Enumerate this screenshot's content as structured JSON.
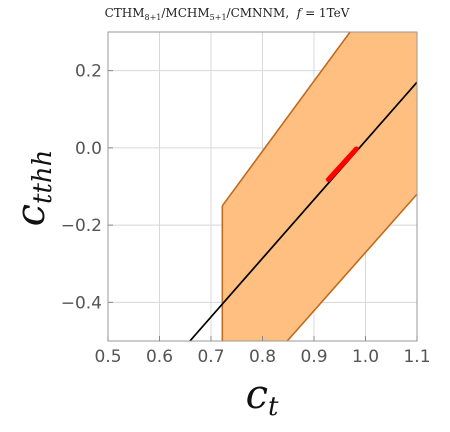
{
  "chart_data": {
    "type": "area",
    "title": {
      "prefix": "CTHM",
      "sub1": "8+1",
      "mid": "/MCHM",
      "sub2": "5+1",
      "suffix": "/CMNNM,  ",
      "param_italic": "f",
      "param_rest": " = 1TeV"
    },
    "xlabel": {
      "main": "c",
      "sub": "t"
    },
    "ylabel": {
      "main": "c",
      "sub": "tthh"
    },
    "xlim": [
      0.5,
      1.1
    ],
    "ylim": [
      -0.5,
      0.3
    ],
    "xticks": [
      0.5,
      0.6,
      0.7,
      0.8,
      0.9,
      1.0,
      1.1
    ],
    "xtick_labels": [
      "0.5",
      "0.6",
      "0.7",
      "0.8",
      "0.9",
      "1.0",
      "1.1"
    ],
    "yticks": [
      0.2,
      0.0,
      -0.2,
      -0.4
    ],
    "ytick_labels": [
      "0.2",
      "0.0",
      "−0.2",
      "−0.4"
    ],
    "grid": true,
    "series": [
      {
        "kind": "band",
        "color": "#FFBF80",
        "edge_color": "#C06A1E",
        "upper": [
          [
            0.722,
            -0.15
          ],
          [
            0.97,
            0.3
          ]
        ],
        "lower": [
          [
            0.722,
            -0.5
          ],
          [
            0.848,
            -0.5
          ],
          [
            1.1,
            -0.12
          ]
        ]
      },
      {
        "kind": "line",
        "color": "#000000",
        "points": [
          [
            0.659,
            -0.5
          ],
          [
            1.1,
            0.17
          ]
        ]
      },
      {
        "kind": "segment",
        "color": "#FF0000",
        "points": [
          [
            0.928,
            -0.082
          ],
          [
            0.982,
            -0.003
          ]
        ]
      }
    ]
  }
}
